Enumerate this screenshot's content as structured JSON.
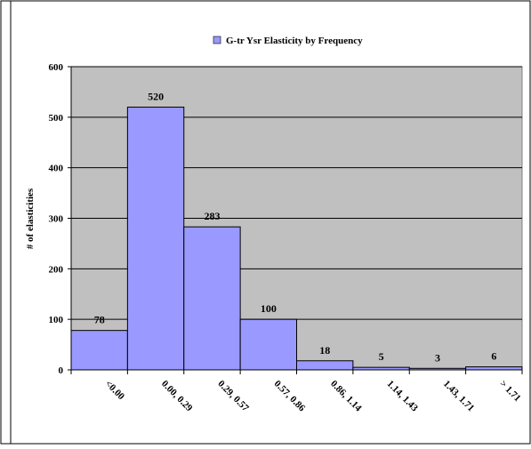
{
  "chart_data": {
    "type": "bar",
    "title": "",
    "xlabel": "",
    "ylabel": "# of elasticities",
    "categories": [
      "<0.00",
      "0.00, 0.29",
      "0.29, 0.57",
      "0.57, 0.86",
      "0.86, 1.14",
      "1.14, 1.43",
      "1.43, 1.71",
      "> 1.71"
    ],
    "series": [
      {
        "name": "G-tr Ysr Elasticity by Frequency",
        "values": [
          78,
          520,
          283,
          100,
          18,
          5,
          3,
          6
        ]
      }
    ],
    "ylim": [
      0,
      600
    ],
    "yticks": [
      0,
      100,
      200,
      300,
      400,
      500,
      600
    ],
    "grid": true,
    "legend_position": "top",
    "data_labels": true,
    "colors": {
      "bar_fill": "#9999ff",
      "bar_stroke": "#000000",
      "plot_bg": "#c0c0c0",
      "gridline": "#000000"
    }
  }
}
